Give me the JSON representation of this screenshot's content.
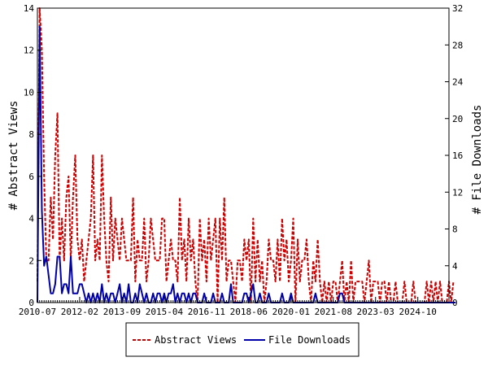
{
  "chart_data": {
    "type": "line",
    "title": "",
    "ylabel_left": "# Abstract Views",
    "ylabel_right": "# File Downloads",
    "ylim_left": [
      0,
      14
    ],
    "ylim_right": [
      0,
      32
    ],
    "yticks_left": [
      0,
      2,
      4,
      6,
      8,
      10,
      12,
      14
    ],
    "yticks_right": [
      0,
      4,
      8,
      12,
      16,
      20,
      24,
      28,
      32
    ],
    "xlim": [
      "2010-07",
      "2025-12"
    ],
    "x_tick_labels": [
      "2010-07",
      "2012-02",
      "2013-09",
      "2015-04",
      "2016-11",
      "2018-06",
      "2020-01",
      "2021-08",
      "2023-03",
      "2024-10"
    ],
    "grid": false,
    "legend_position": "bottom",
    "series": [
      {
        "name": "Abstract Views",
        "axis": "left",
        "color": "#cc0000",
        "style": "dashed",
        "x_start": "2010-07",
        "values": [
          1,
          14,
          12,
          6,
          2,
          2,
          5,
          3,
          7,
          9,
          2,
          4,
          2,
          5,
          6,
          2,
          5,
          7,
          3,
          2,
          3,
          1,
          2,
          3,
          4,
          7,
          2,
          3,
          2,
          7,
          4,
          2,
          1,
          5,
          2,
          4,
          3,
          2,
          4,
          3,
          2,
          2,
          2,
          5,
          1,
          3,
          2,
          2,
          4,
          1,
          2,
          4,
          3,
          2,
          2,
          2,
          4,
          4,
          1,
          2,
          3,
          2,
          2,
          1,
          5,
          2,
          3,
          1,
          4,
          2,
          3,
          1,
          0,
          4,
          2,
          3,
          1,
          4,
          2,
          3,
          4,
          0,
          4,
          2,
          5,
          1,
          2,
          2,
          1,
          0,
          2,
          2,
          1,
          3,
          2,
          3,
          0,
          4,
          1,
          3,
          1,
          2,
          0,
          1,
          3,
          2,
          2,
          1,
          3,
          1,
          4,
          2,
          3,
          1,
          2,
          4,
          0,
          3,
          1,
          2,
          2,
          3,
          1,
          0,
          2,
          1,
          3,
          1,
          0,
          1,
          0,
          1,
          0,
          1,
          1,
          0,
          1,
          2,
          0,
          1,
          0,
          2,
          0,
          1,
          1,
          1,
          1,
          0,
          1,
          2,
          0,
          1,
          1,
          1,
          0,
          1,
          1,
          0,
          1,
          0,
          0,
          1,
          0,
          0,
          0,
          1,
          0,
          0,
          0,
          1,
          0,
          0,
          0,
          0,
          0,
          1,
          0,
          1,
          0,
          1,
          0,
          1,
          0,
          0,
          0,
          1,
          0,
          1
        ]
      },
      {
        "name": "File Downloads",
        "axis": "right",
        "color": "#0000aa",
        "style": "solid",
        "x_start": "2010-07",
        "values": [
          0,
          30,
          10,
          4,
          5,
          3,
          1,
          1,
          2,
          5,
          5,
          1,
          2,
          2,
          1,
          5,
          1,
          1,
          1,
          2,
          2,
          1,
          0,
          1,
          0,
          1,
          0,
          1,
          0,
          2,
          0,
          1,
          0,
          1,
          1,
          0,
          1,
          2,
          0,
          1,
          0,
          2,
          0,
          0,
          1,
          0,
          2,
          1,
          0,
          1,
          0,
          0,
          1,
          0,
          1,
          1,
          0,
          1,
          0,
          1,
          1,
          2,
          0,
          1,
          0,
          1,
          1,
          0,
          1,
          0,
          1,
          1,
          0,
          0,
          0,
          1,
          0,
          0,
          0,
          1,
          0,
          0,
          0,
          1,
          0,
          0,
          0,
          2,
          0,
          0,
          0,
          0,
          0,
          1,
          1,
          0,
          1,
          2,
          0,
          0,
          1,
          0,
          0,
          0,
          1,
          0,
          0,
          0,
          0,
          0,
          1,
          0,
          0,
          0,
          1,
          0,
          0,
          0,
          0,
          0,
          0,
          0,
          0,
          0,
          0,
          1,
          0,
          0,
          0,
          0,
          0,
          0,
          0,
          0,
          0,
          0,
          1,
          1,
          0,
          0,
          0,
          0,
          0,
          0,
          0,
          0,
          0,
          0,
          0,
          0,
          0,
          0,
          0,
          0,
          0,
          0,
          0,
          0,
          0,
          0,
          0,
          0,
          0,
          0,
          0,
          0,
          0,
          0,
          0,
          0,
          0,
          0,
          0,
          0,
          0,
          0,
          0,
          0,
          0,
          0,
          0,
          0,
          0,
          0,
          0,
          0,
          0,
          0,
          0
        ]
      }
    ]
  }
}
